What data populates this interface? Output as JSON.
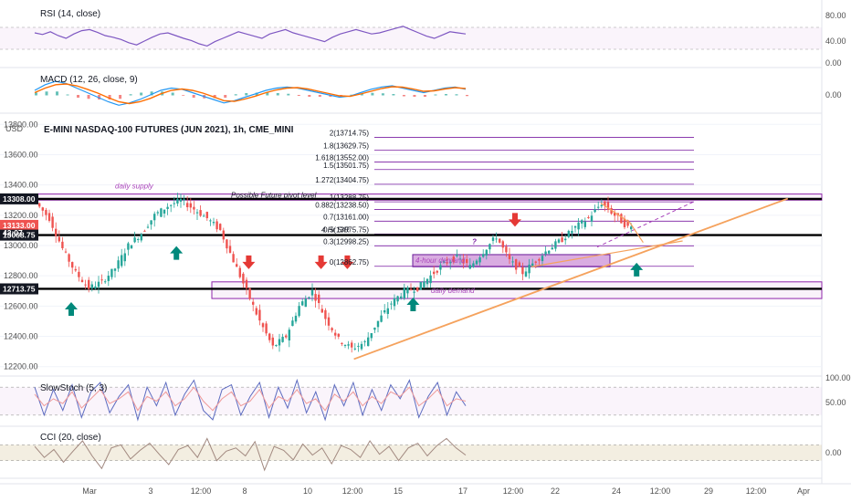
{
  "chart_data": {
    "type": "candlestick",
    "title": "E-MINI NASDAQ-100 FUTURES (JUN 2021), 1h, CME_MINI",
    "currency": "USD",
    "x_labels": [
      "Mar",
      "3",
      "12:00",
      "8",
      "10",
      "12:00",
      "15",
      "17",
      "12:00",
      "22",
      "24",
      "12:00",
      "29",
      "12:00",
      "Apr"
    ],
    "y_ticks": [
      13800,
      13600,
      13400,
      13200,
      13000,
      12800,
      12600,
      12400,
      12200
    ],
    "ylim": [
      12150,
      13850
    ],
    "price_tags": [
      {
        "label": "13308.00",
        "value": 13308,
        "color": "#131722"
      },
      {
        "label": "13133.00",
        "value": 13133,
        "color": "#ef5350"
      },
      {
        "label": "42:07",
        "value": 13085,
        "color": "#ef5350"
      },
      {
        "label": "13068.75",
        "value": 13068.75,
        "color": "#131722"
      },
      {
        "label": "12713.75",
        "value": 12713.75,
        "color": "#131722"
      }
    ],
    "close_path": [
      [
        0,
        13280
      ],
      [
        4,
        13180
      ],
      [
        8,
        12980
      ],
      [
        12,
        12820
      ],
      [
        16,
        12720
      ],
      [
        20,
        12760
      ],
      [
        24,
        12850
      ],
      [
        28,
        13000
      ],
      [
        32,
        13080
      ],
      [
        36,
        13200
      ],
      [
        40,
        13260
      ],
      [
        44,
        13300
      ],
      [
        48,
        13240
      ],
      [
        52,
        13180
      ],
      [
        56,
        13100
      ],
      [
        60,
        12900
      ],
      [
        64,
        12700
      ],
      [
        68,
        12500
      ],
      [
        72,
        12330
      ],
      [
        76,
        12400
      ],
      [
        80,
        12600
      ],
      [
        84,
        12700
      ],
      [
        88,
        12520
      ],
      [
        92,
        12380
      ],
      [
        96,
        12320
      ],
      [
        100,
        12360
      ],
      [
        104,
        12500
      ],
      [
        108,
        12620
      ],
      [
        112,
        12700
      ],
      [
        116,
        12720
      ],
      [
        120,
        12800
      ],
      [
        124,
        12880
      ],
      [
        128,
        12920
      ],
      [
        132,
        12860
      ],
      [
        136,
        12960
      ],
      [
        140,
        13060
      ],
      [
        144,
        12900
      ],
      [
        148,
        12820
      ],
      [
        152,
        12900
      ],
      [
        156,
        12980
      ],
      [
        160,
        13040
      ],
      [
        164,
        13120
      ],
      [
        168,
        13180
      ],
      [
        172,
        13280
      ],
      [
        176,
        13200
      ],
      [
        180,
        13120
      ]
    ],
    "horizontal_levels": [
      13308,
      13068.75,
      12713.75
    ],
    "fib_levels": [
      {
        "label": "2(13714.75)",
        "value": 13714.75
      },
      {
        "label": "1.8(13629.75)",
        "value": 13629.75
      },
      {
        "label": "1.618(13552.00)",
        "value": 13552
      },
      {
        "label": "1.5(13501.75)",
        "value": 13501.75
      },
      {
        "label": "1.272(13404.75)",
        "value": 13404.75
      },
      {
        "label": "1(13288.75)",
        "value": 13288.75
      },
      {
        "label": "0.882(13238.50)",
        "value": 13238.5
      },
      {
        "label": "0.7(13161.00)",
        "value": 13161
      },
      {
        "label": "0.5(13075.75)",
        "value": 13075.75
      },
      {
        "label": "0.3(12998.25)",
        "value": 12998.25
      },
      {
        "label": "0(12862.75)",
        "value": 12862.75
      }
    ],
    "zones": [
      {
        "label": "daily supply",
        "top": 13340,
        "bottom": 13300
      },
      {
        "label": "daily demand",
        "top": 12760,
        "bottom": 12650
      },
      {
        "label": "4-hour demand",
        "top": 12940,
        "bottom": 12860
      }
    ],
    "annotations": [
      "Possible Future pivot level",
      "4 Hr S/R",
      "?"
    ],
    "trendline": {
      "from": [
        96,
        12250
      ],
      "to": [
        228,
        13310
      ]
    },
    "sell_arrows": [
      [
        64,
        12850
      ],
      [
        86,
        12850
      ],
      [
        94,
        12850
      ],
      [
        145,
        13130
      ]
    ],
    "buy_arrows": [
      [
        10,
        12620
      ],
      [
        42,
        12990
      ],
      [
        114,
        12650
      ],
      [
        182,
        12880
      ]
    ],
    "indicators": [
      {
        "name": "RSI (14, close)",
        "ticks": [
          "80.00",
          "40.00",
          "0.00"
        ],
        "range": [
          0,
          100
        ],
        "upper": 70,
        "lower": 30,
        "values": [
          60,
          57,
          62,
          55,
          50,
          58,
          64,
          66,
          61,
          55,
          52,
          48,
          42,
          38,
          45,
          52,
          58,
          60,
          55,
          50,
          46,
          40,
          36,
          44,
          50,
          56,
          62,
          58,
          54,
          50,
          58,
          62,
          66,
          60,
          56,
          52,
          48,
          44,
          52,
          58,
          62,
          66,
          62,
          58,
          60,
          64,
          68,
          72,
          66,
          60,
          54,
          50,
          56,
          62,
          60,
          58
        ]
      },
      {
        "name": "MACD (12, 26, close, 9)",
        "ticks": [
          "0.00"
        ],
        "macd": [
          20,
          45,
          60,
          50,
          30,
          10,
          -10,
          -30,
          -45,
          -35,
          -20,
          0,
          20,
          30,
          25,
          10,
          -5,
          -20,
          -35,
          -25,
          -10,
          5,
          20,
          30,
          35,
          30,
          20,
          10,
          0,
          -10,
          -5,
          10,
          25,
          35,
          40,
          30,
          20,
          10,
          20,
          30,
          35,
          25
        ],
        "signal": [
          10,
          30,
          45,
          48,
          40,
          25,
          8,
          -12,
          -30,
          -38,
          -30,
          -15,
          5,
          20,
          26,
          20,
          8,
          -8,
          -25,
          -28,
          -18,
          -5,
          10,
          22,
          30,
          32,
          26,
          16,
          6,
          -4,
          -6,
          4,
          16,
          28,
          36,
          34,
          26,
          16,
          18,
          26,
          32,
          28
        ],
        "hist_colors": [
          "#26a69a",
          "#ef5350"
        ]
      },
      {
        "name": "SlowStoch (5, 3)",
        "ticks": [
          "100.00",
          "50.00"
        ],
        "range": [
          0,
          100
        ],
        "upper": 80,
        "lower": 20,
        "k": [
          80,
          20,
          75,
          30,
          85,
          15,
          70,
          90,
          25,
          60,
          85,
          10,
          80,
          40,
          90,
          20,
          65,
          95,
          30,
          10,
          75,
          85,
          20,
          60,
          90,
          15,
          80,
          35,
          95,
          25,
          70,
          10,
          85,
          40,
          90,
          20,
          75,
          30,
          85,
          55,
          95,
          15,
          60,
          90,
          20,
          70,
          40
        ],
        "d": [
          65,
          40,
          55,
          45,
          70,
          35,
          55,
          75,
          45,
          55,
          70,
          30,
          60,
          50,
          70,
          40,
          55,
          80,
          50,
          30,
          55,
          70,
          40,
          50,
          75,
          35,
          60,
          50,
          75,
          45,
          55,
          30,
          65,
          50,
          70,
          40,
          60,
          45,
          70,
          60,
          80,
          40,
          55,
          75,
          40,
          55,
          50
        ]
      },
      {
        "name": "CCI (20, close)",
        "ticks": [
          "0.00"
        ],
        "range": [
          -300,
          300
        ],
        "upper": 100,
        "lower": -100,
        "values": [
          80,
          -60,
          40,
          -120,
          20,
          150,
          -40,
          -200,
          60,
          100,
          -80,
          30,
          120,
          -20,
          -150,
          40,
          90,
          -60,
          180,
          -100,
          20,
          60,
          -40,
          140,
          -220,
          80,
          30,
          -90,
          110,
          -30,
          60,
          -140,
          90,
          40,
          -60,
          150,
          -20,
          80,
          -100,
          60,
          120,
          -40,
          90,
          180,
          60,
          -30
        ]
      }
    ]
  }
}
